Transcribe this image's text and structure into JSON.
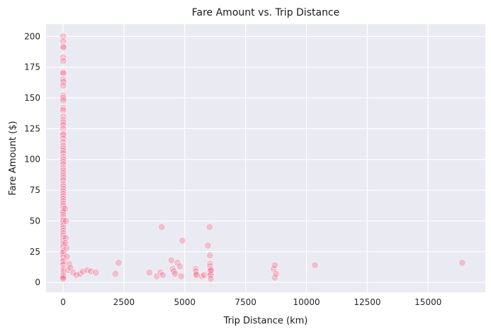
{
  "chart_data": {
    "type": "scatter",
    "title": "Fare Amount vs. Trip Distance",
    "xlabel": "Trip Distance (km)",
    "ylabel": "Fare Amount ($)",
    "xlim": [
      -700,
      17350
    ],
    "ylim": [
      -8,
      210
    ],
    "xticks": [
      0,
      2500,
      5000,
      7500,
      10000,
      12500,
      15000
    ],
    "yticks": [
      0,
      25,
      50,
      75,
      100,
      125,
      150,
      175,
      200
    ],
    "grid": true,
    "legend": "none",
    "colors": {
      "background": "#eaeaf2",
      "grid": "#ffffff",
      "point_fill": "#f0688a",
      "point_stroke": "#ffffff"
    },
    "series": [
      {
        "points": [
          {
            "x": 2,
            "y": 200
          },
          {
            "x": 3,
            "y": 196
          },
          {
            "x": 5,
            "y": 192
          },
          {
            "x": 20,
            "y": 191
          },
          {
            "x": 1,
            "y": 183
          },
          {
            "x": 4,
            "y": 180
          },
          {
            "x": 2,
            "y": 171
          },
          {
            "x": 8,
            "y": 170
          },
          {
            "x": 3,
            "y": 165
          },
          {
            "x": 10,
            "y": 163
          },
          {
            "x": 2,
            "y": 160
          },
          {
            "x": 6,
            "y": 152
          },
          {
            "x": 3,
            "y": 150
          },
          {
            "x": 9,
            "y": 148
          },
          {
            "x": 4,
            "y": 142
          },
          {
            "x": 2,
            "y": 140
          },
          {
            "x": 5,
            "y": 135
          },
          {
            "x": 3,
            "y": 132
          },
          {
            "x": 7,
            "y": 130
          },
          {
            "x": 2,
            "y": 128
          },
          {
            "x": 4,
            "y": 125
          },
          {
            "x": 8,
            "y": 121
          },
          {
            "x": 3,
            "y": 120
          },
          {
            "x": 5,
            "y": 117
          },
          {
            "x": 2,
            "y": 114
          },
          {
            "x": 6,
            "y": 111
          },
          {
            "x": 3,
            "y": 109
          },
          {
            "x": 9,
            "y": 107
          },
          {
            "x": 2,
            "y": 105
          },
          {
            "x": 4,
            "y": 102
          },
          {
            "x": 7,
            "y": 100
          },
          {
            "x": 3,
            "y": 98
          },
          {
            "x": 5,
            "y": 96
          },
          {
            "x": 2,
            "y": 93
          },
          {
            "x": 4,
            "y": 91
          },
          {
            "x": 6,
            "y": 89
          },
          {
            "x": 3,
            "y": 87
          },
          {
            "x": 8,
            "y": 85
          },
          {
            "x": 2,
            "y": 83
          },
          {
            "x": 5,
            "y": 80
          },
          {
            "x": 3,
            "y": 78
          },
          {
            "x": 7,
            "y": 76
          },
          {
            "x": 2,
            "y": 74
          },
          {
            "x": 4,
            "y": 72
          },
          {
            "x": 6,
            "y": 70
          },
          {
            "x": 3,
            "y": 68
          },
          {
            "x": 5,
            "y": 66
          },
          {
            "x": 2,
            "y": 64
          },
          {
            "x": 8,
            "y": 62
          },
          {
            "x": 3,
            "y": 60
          },
          {
            "x": 4,
            "y": 58
          },
          {
            "x": 6,
            "y": 57
          },
          {
            "x": 2,
            "y": 55
          },
          {
            "x": 5,
            "y": 53
          },
          {
            "x": 3,
            "y": 51
          },
          {
            "x": 7,
            "y": 50
          },
          {
            "x": 2,
            "y": 48
          },
          {
            "x": 4,
            "y": 46
          },
          {
            "x": 6,
            "y": 44
          },
          {
            "x": 3,
            "y": 42
          },
          {
            "x": 5,
            "y": 40
          },
          {
            "x": 2,
            "y": 38
          },
          {
            "x": 8,
            "y": 36
          },
          {
            "x": 3,
            "y": 34
          },
          {
            "x": 4,
            "y": 32
          },
          {
            "x": 6,
            "y": 30
          },
          {
            "x": 2,
            "y": 28
          },
          {
            "x": 5,
            "y": 26
          },
          {
            "x": 3,
            "y": 25
          },
          {
            "x": 7,
            "y": 24
          },
          {
            "x": 2,
            "y": 22
          },
          {
            "x": 4,
            "y": 20
          },
          {
            "x": 6,
            "y": 18
          },
          {
            "x": 3,
            "y": 17
          },
          {
            "x": 5,
            "y": 15
          },
          {
            "x": 2,
            "y": 14
          },
          {
            "x": 8,
            "y": 12
          },
          {
            "x": 3,
            "y": 11
          },
          {
            "x": 4,
            "y": 10
          },
          {
            "x": 6,
            "y": 9
          },
          {
            "x": 2,
            "y": 8
          },
          {
            "x": 5,
            "y": 7
          },
          {
            "x": 3,
            "y": 6
          },
          {
            "x": 7,
            "y": 5
          },
          {
            "x": 2,
            "y": 4
          },
          {
            "x": 4,
            "y": 3
          },
          {
            "x": 80,
            "y": 60
          },
          {
            "x": 120,
            "y": 50
          },
          {
            "x": 140,
            "y": 28
          },
          {
            "x": 160,
            "y": 21
          },
          {
            "x": 110,
            "y": 36
          },
          {
            "x": 90,
            "y": 32
          },
          {
            "x": 200,
            "y": 10
          },
          {
            "x": 250,
            "y": 15
          },
          {
            "x": 300,
            "y": 12
          },
          {
            "x": 420,
            "y": 8
          },
          {
            "x": 550,
            "y": 6
          },
          {
            "x": 700,
            "y": 7
          },
          {
            "x": 820,
            "y": 9
          },
          {
            "x": 1000,
            "y": 10
          },
          {
            "x": 1150,
            "y": 9
          },
          {
            "x": 1350,
            "y": 8
          },
          {
            "x": 2150,
            "y": 7
          },
          {
            "x": 2280,
            "y": 16
          },
          {
            "x": 3550,
            "y": 8
          },
          {
            "x": 3850,
            "y": 5
          },
          {
            "x": 4000,
            "y": 8
          },
          {
            "x": 4100,
            "y": 6
          },
          {
            "x": 4050,
            "y": 45
          },
          {
            "x": 4450,
            "y": 18
          },
          {
            "x": 4500,
            "y": 11
          },
          {
            "x": 4550,
            "y": 9
          },
          {
            "x": 4600,
            "y": 7
          },
          {
            "x": 4700,
            "y": 16
          },
          {
            "x": 4800,
            "y": 13
          },
          {
            "x": 4850,
            "y": 5
          },
          {
            "x": 4900,
            "y": 34
          },
          {
            "x": 5450,
            "y": 11
          },
          {
            "x": 5450,
            "y": 9
          },
          {
            "x": 5470,
            "y": 7
          },
          {
            "x": 5480,
            "y": 6
          },
          {
            "x": 5700,
            "y": 5
          },
          {
            "x": 5800,
            "y": 6
          },
          {
            "x": 5950,
            "y": 30
          },
          {
            "x": 6000,
            "y": 8
          },
          {
            "x": 6020,
            "y": 45
          },
          {
            "x": 6030,
            "y": 22
          },
          {
            "x": 6040,
            "y": 15
          },
          {
            "x": 6040,
            "y": 13
          },
          {
            "x": 6050,
            "y": 11
          },
          {
            "x": 6050,
            "y": 9
          },
          {
            "x": 6060,
            "y": 7
          },
          {
            "x": 6060,
            "y": 6
          },
          {
            "x": 6070,
            "y": 3
          },
          {
            "x": 6080,
            "y": 10
          },
          {
            "x": 8650,
            "y": 11
          },
          {
            "x": 8700,
            "y": 14
          },
          {
            "x": 8700,
            "y": 4
          },
          {
            "x": 8750,
            "y": 7
          },
          {
            "x": 10350,
            "y": 14
          },
          {
            "x": 16400,
            "y": 16
          }
        ]
      }
    ]
  }
}
